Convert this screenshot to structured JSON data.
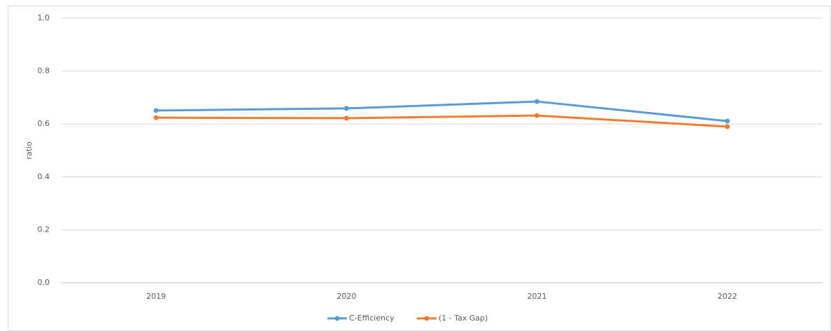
{
  "chart_data": {
    "type": "line",
    "y_label": "ratio",
    "categories": [
      "2019",
      "2020",
      "2021",
      "2022"
    ],
    "series": [
      {
        "name": "C-Efficiency",
        "color": "#5b9bd5",
        "values": [
          0.651,
          0.659,
          0.685,
          0.611
        ]
      },
      {
        "name": "(1 - Tax Gap)",
        "color": "#ed7d31",
        "values": [
          0.624,
          0.622,
          0.632,
          0.59
        ]
      }
    ],
    "ylim": [
      0,
      1
    ],
    "yticks": [
      {
        "value": 0,
        "label": "0.0"
      },
      0.2,
      0.4,
      0.6,
      0.8,
      {
        "value": 1,
        "label": "1.0"
      }
    ],
    "grid": true,
    "legend": "bottom"
  }
}
